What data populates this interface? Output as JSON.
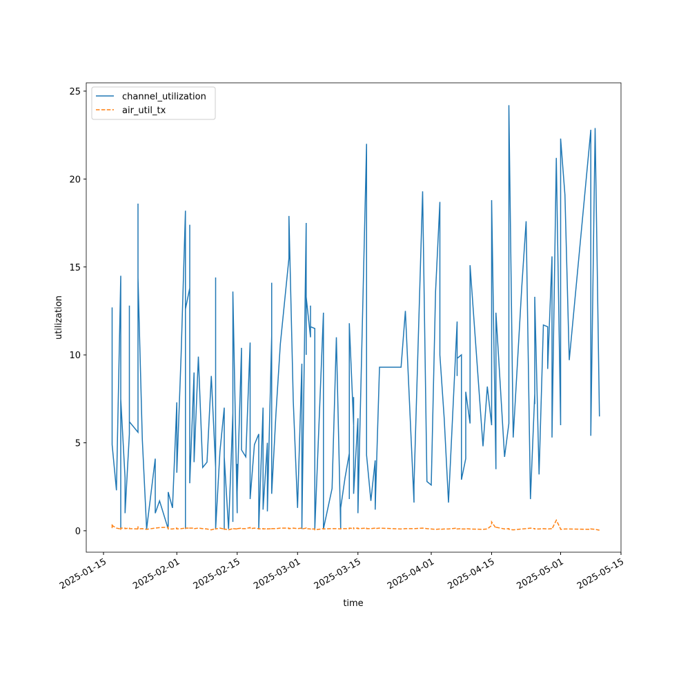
{
  "chart_data": {
    "type": "line",
    "x_label": "time",
    "y_label": "utilization",
    "x": [
      "2025-01-17",
      "2025-01-17",
      "2025-01-17",
      "2025-01-18",
      "2025-01-19",
      "2025-01-19",
      "2025-01-19",
      "2025-01-19",
      "2025-01-20",
      "2025-01-20",
      "2025-01-21",
      "2025-01-21",
      "2025-01-21",
      "2025-01-23",
      "2025-01-23",
      "2025-01-23",
      "2025-01-24",
      "2025-01-25",
      "2025-01-27",
      "2025-01-27",
      "2025-01-28",
      "2025-01-30",
      "2025-01-30",
      "2025-01-31",
      "2025-02-01",
      "2025-02-01",
      "2025-02-02",
      "2025-02-03",
      "2025-02-03",
      "2025-02-03",
      "2025-02-04",
      "2025-02-04",
      "2025-02-04",
      "2025-02-05",
      "2025-02-05",
      "2025-02-06",
      "2025-02-07",
      "2025-02-08",
      "2025-02-09",
      "2025-02-10",
      "2025-02-10",
      "2025-02-10",
      "2025-02-11",
      "2025-02-12",
      "2025-02-12",
      "2025-02-12",
      "2025-02-13",
      "2025-02-14",
      "2025-02-14",
      "2025-02-14",
      "2025-02-15",
      "2025-02-15",
      "2025-02-15",
      "2025-02-16",
      "2025-02-16",
      "2025-02-17",
      "2025-02-18",
      "2025-02-18",
      "2025-02-19",
      "2025-02-20",
      "2025-02-20",
      "2025-02-21",
      "2025-02-21",
      "2025-02-22",
      "2025-02-22",
      "2025-02-23",
      "2025-02-23",
      "2025-02-23",
      "2025-02-24",
      "2025-02-25",
      "2025-02-27",
      "2025-02-27",
      "2025-02-28",
      "2025-03-01",
      "2025-03-02",
      "2025-03-02",
      "2025-03-03",
      "2025-03-03",
      "2025-03-03",
      "2025-03-04",
      "2025-03-04",
      "2025-03-04",
      "2025-03-05",
      "2025-03-05",
      "2025-03-07",
      "2025-03-07",
      "2025-03-09",
      "2025-03-10",
      "2025-03-11",
      "2025-03-11",
      "2025-03-12",
      "2025-03-13",
      "2025-03-13",
      "2025-03-13",
      "2025-03-14",
      "2025-03-14",
      "2025-03-14",
      "2025-03-15",
      "2025-03-15",
      "2025-03-17",
      "2025-03-17",
      "2025-03-18",
      "2025-03-19",
      "2025-03-19",
      "2025-03-20",
      "2025-03-25",
      "2025-03-26",
      "2025-03-28",
      "2025-03-28",
      "2025-03-30",
      "2025-03-31",
      "2025-04-01",
      "2025-04-02",
      "2025-04-03",
      "2025-04-03",
      "2025-04-04",
      "2025-04-05",
      "2025-04-07",
      "2025-04-07",
      "2025-04-07",
      "2025-04-08",
      "2025-04-08",
      "2025-04-09",
      "2025-04-09",
      "2025-04-09",
      "2025-04-10",
      "2025-04-10",
      "2025-04-13",
      "2025-04-14",
      "2025-04-15",
      "2025-04-15",
      "2025-04-16",
      "2025-04-16",
      "2025-04-18",
      "2025-04-19",
      "2025-04-19",
      "2025-04-20",
      "2025-04-22",
      "2025-04-23",
      "2025-04-24",
      "2025-04-25",
      "2025-04-25",
      "2025-04-25",
      "2025-04-26",
      "2025-04-27",
      "2025-04-28",
      "2025-04-28",
      "2025-04-29",
      "2025-04-29",
      "2025-04-30",
      "2025-05-01",
      "2025-05-01",
      "2025-05-02",
      "2025-05-03",
      "2025-05-08",
      "2025-05-08",
      "2025-05-09",
      "2025-05-10"
    ],
    "series": [
      {
        "name": "channel_utilization",
        "color": "#1f77b4",
        "dash": false,
        "values": [
          8.6,
          12.7,
          4.9,
          2.3,
          14.5,
          14.5,
          0.1,
          7.5,
          3.0,
          1.0,
          5.5,
          12.8,
          6.2,
          5.6,
          18.6,
          14.4,
          5.2,
          0.1,
          4.1,
          1.0,
          1.7,
          0.1,
          2.2,
          1.3,
          7.3,
          3.3,
          10.0,
          18.2,
          0.1,
          12.6,
          13.8,
          17.4,
          2.7,
          9.0,
          3.9,
          9.9,
          3.6,
          3.9,
          8.8,
          3.6,
          14.4,
          0.1,
          4.5,
          7.0,
          0.1,
          4.2,
          0.1,
          6.7,
          0.5,
          13.6,
          1.0,
          3.8,
          2.2,
          10.4,
          4.6,
          4.2,
          10.7,
          1.8,
          4.9,
          5.5,
          0.1,
          7.0,
          1.2,
          5.0,
          1.1,
          11.1,
          14.1,
          2.1,
          6.7,
          10.6,
          15.5,
          17.9,
          7.4,
          1.3,
          9.5,
          0.1,
          17.5,
          10.0,
          13.3,
          11.0,
          12.8,
          11.6,
          11.5,
          0.1,
          12.4,
          0.1,
          2.4,
          11.0,
          0.1,
          1.3,
          3.0,
          4.4,
          1.8,
          11.8,
          6.0,
          7.6,
          2.1,
          6.4,
          1.0,
          22.0,
          4.3,
          1.7,
          4.0,
          1.2,
          9.3,
          9.3,
          12.5,
          1.6,
          2.6,
          19.3,
          2.8,
          2.6,
          13.6,
          18.7,
          10.0,
          6.4,
          1.6,
          11.9,
          8.8,
          9.8,
          10.0,
          2.9,
          4.1,
          6.1,
          7.9,
          6.1,
          15.1,
          4.8,
          8.2,
          6.0,
          18.8,
          3.5,
          12.4,
          4.2,
          6.1,
          24.2,
          5.3,
          13.9,
          17.6,
          1.8,
          7.8,
          7.2,
          13.3,
          3.2,
          11.7,
          11.6,
          9.2,
          15.6,
          5.3,
          21.2,
          6.0,
          22.3,
          19.1,
          9.7,
          22.8,
          5.4,
          22.9,
          6.5
        ]
      },
      {
        "name": "air_util_tx",
        "color": "#ff7f0e",
        "dash": true,
        "values": [
          0.15,
          0.4,
          0.3,
          0.15,
          0.1,
          0.1,
          0.05,
          0.15,
          0.15,
          0.12,
          0.15,
          0.12,
          0.12,
          0.1,
          0.25,
          0.1,
          0.12,
          0.08,
          0.15,
          0.15,
          0.18,
          0.2,
          0.1,
          0.1,
          0.15,
          0.1,
          0.12,
          0.15,
          0.12,
          0.15,
          0.15,
          0.12,
          0.15,
          0.15,
          0.12,
          0.15,
          0.12,
          0.1,
          0.05,
          0.12,
          0.15,
          0.1,
          0.15,
          0.1,
          0.05,
          0.1,
          0.05,
          0.12,
          0.1,
          0.12,
          0.1,
          0.15,
          0.12,
          0.15,
          0.12,
          0.12,
          0.18,
          0.12,
          0.15,
          0.12,
          0.1,
          0.12,
          0.1,
          0.12,
          0.1,
          0.12,
          0.15,
          0.12,
          0.12,
          0.15,
          0.15,
          0.12,
          0.15,
          0.12,
          0.15,
          0.1,
          0.15,
          0.12,
          0.12,
          0.1,
          0.12,
          0.1,
          0.1,
          0.05,
          0.12,
          0.1,
          0.12,
          0.12,
          0.1,
          0.12,
          0.12,
          0.12,
          0.12,
          0.15,
          0.12,
          0.2,
          0.12,
          0.15,
          0.12,
          0.15,
          0.12,
          0.12,
          0.15,
          0.12,
          0.15,
          0.1,
          0.12,
          0.12,
          0.12,
          0.15,
          0.12,
          0.1,
          0.08,
          0.1,
          0.08,
          0.1,
          0.1,
          0.15,
          0.12,
          0.1,
          0.12,
          0.1,
          0.1,
          0.1,
          0.12,
          0.1,
          0.1,
          0.08,
          0.1,
          0.3,
          0.5,
          0.15,
          0.2,
          0.1,
          0.12,
          0.08,
          0.05,
          0.1,
          0.12,
          0.15,
          0.12,
          0.15,
          0.1,
          0.1,
          0.12,
          0.1,
          0.1,
          0.12,
          0.1,
          0.6,
          0.1,
          0.08,
          0.1,
          0.1,
          0.08,
          0.1,
          0.08,
          0.03
        ]
      }
    ],
    "xlim": [
      "2025-01-11",
      "2025-05-15"
    ],
    "xticks": [
      "2025-01-15",
      "2025-02-01",
      "2025-02-15",
      "2025-03-01",
      "2025-03-15",
      "2025-04-01",
      "2025-04-15",
      "2025-05-01",
      "2025-05-15"
    ],
    "ylim": [
      -1.22,
      25.47
    ],
    "yticks": [
      0,
      5,
      10,
      15,
      20,
      25
    ],
    "legend": "upper left",
    "grid": false
  }
}
